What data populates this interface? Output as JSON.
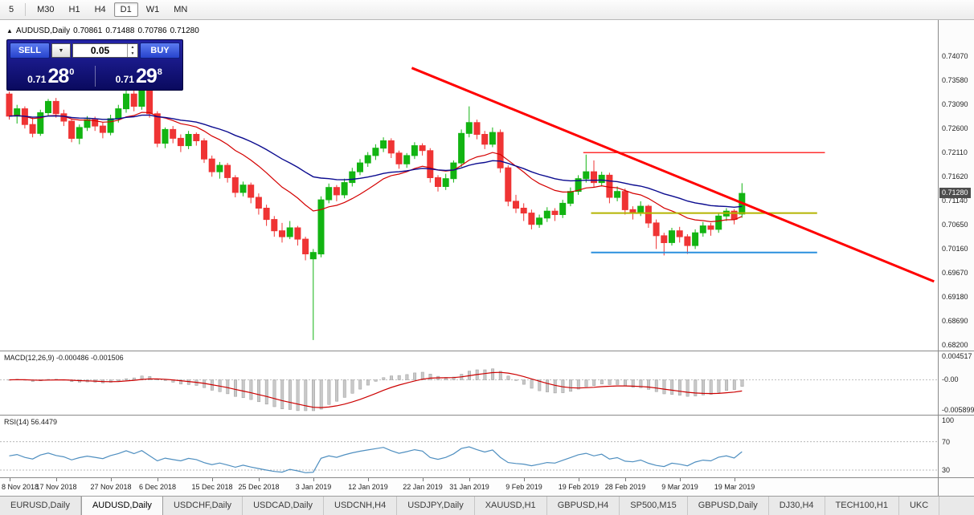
{
  "toolbar": {
    "timeframes": [
      "5",
      "M30",
      "H1",
      "H4",
      "D1",
      "W1",
      "MN"
    ],
    "active": "D1"
  },
  "chart": {
    "title_symbol": "AUDUSD,Daily",
    "ohlc": {
      "open": "0.70861",
      "high": "0.71488",
      "low": "0.70786",
      "close": "0.71280"
    }
  },
  "trade_panel": {
    "sell_label": "SELL",
    "buy_label": "BUY",
    "lot_size": "0.05",
    "sell_price_small": "0.71",
    "sell_price_big": "28",
    "sell_price_sup": "0",
    "buy_price_small": "0.71",
    "buy_price_big": "29",
    "buy_price_sup": "8"
  },
  "price_axis": {
    "labels": [
      "0.74070",
      "0.73580",
      "0.73090",
      "0.72600",
      "0.72110",
      "0.71620",
      "0.71140",
      "0.70650",
      "0.70160",
      "0.69670",
      "0.69180",
      "0.68690",
      "0.68200"
    ],
    "current": "0.71280",
    "current_price": 0.7128
  },
  "macd_panel": {
    "label": "MACD(12,26,9) -0.000486 -0.001506",
    "axis": [
      "0.004517",
      "-0.00",
      "-0.005899"
    ],
    "max": 0.004517,
    "min": -0.005899
  },
  "rsi_panel": {
    "label": "RSI(14) 56.4479",
    "axis": [
      "100",
      "70",
      "30"
    ],
    "levels": [
      70,
      30
    ]
  },
  "date_axis": {
    "ticks": [
      {
        "i": 0,
        "label": "8 Nov 2018"
      },
      {
        "i": 6,
        "label": "17 Nov 2018"
      },
      {
        "i": 13,
        "label": "27 Nov 2018"
      },
      {
        "i": 19,
        "label": "6 Dec 2018"
      },
      {
        "i": 26,
        "label": "15 Dec 2018"
      },
      {
        "i": 32,
        "label": "25 Dec 2018"
      },
      {
        "i": 39,
        "label": "3 Jan 2019"
      },
      {
        "i": 46,
        "label": "12 Jan 2019"
      },
      {
        "i": 53,
        "label": "22 Jan 2019"
      },
      {
        "i": 59,
        "label": "31 Jan 2019"
      },
      {
        "i": 66,
        "label": "9 Feb 2019"
      },
      {
        "i": 73,
        "label": "19 Feb 2019"
      },
      {
        "i": 79,
        "label": "28 Feb 2019"
      },
      {
        "i": 86,
        "label": "9 Mar 2019"
      },
      {
        "i": 93,
        "label": "19 Mar 2019"
      }
    ]
  },
  "tabs": [
    "EURUSD,Daily",
    "AUDUSD,Daily",
    "USDCHF,Daily",
    "USDCAD,Daily",
    "USDCNH,H4",
    "USDJPY,Daily",
    "XAUUSD,H1",
    "GBPUSD,H4",
    "SP500,M15",
    "GBPUSD,Daily",
    "DJ30,H4",
    "TECH100,H1",
    "UKC"
  ],
  "active_tab": "AUDUSD,Daily",
  "chart_data": {
    "type": "candlestick",
    "symbol": "AUDUSD",
    "timeframe": "Daily",
    "title": "AUDUSD,Daily",
    "price_range": {
      "top": 0.7407,
      "bottom": 0.682
    },
    "candles": [
      [
        0.733,
        0.7335,
        0.7278,
        0.7285
      ],
      [
        0.7285,
        0.7308,
        0.727,
        0.73
      ],
      [
        0.73,
        0.7305,
        0.726,
        0.7268
      ],
      [
        0.7268,
        0.7282,
        0.7242,
        0.725
      ],
      [
        0.725,
        0.7298,
        0.7245,
        0.7292
      ],
      [
        0.7292,
        0.732,
        0.7285,
        0.7315
      ],
      [
        0.7315,
        0.7322,
        0.7282,
        0.729
      ],
      [
        0.729,
        0.7298,
        0.7265,
        0.7275
      ],
      [
        0.7275,
        0.728,
        0.7232,
        0.724
      ],
      [
        0.724,
        0.7268,
        0.7228,
        0.7262
      ],
      [
        0.7262,
        0.7285,
        0.7255,
        0.7278
      ],
      [
        0.7278,
        0.7284,
        0.7255,
        0.7265
      ],
      [
        0.7265,
        0.7272,
        0.724,
        0.7252
      ],
      [
        0.7252,
        0.7288,
        0.7246,
        0.728
      ],
      [
        0.728,
        0.7308,
        0.7272,
        0.73
      ],
      [
        0.73,
        0.7338,
        0.7292,
        0.733
      ],
      [
        0.733,
        0.734,
        0.7295,
        0.7305
      ],
      [
        0.7305,
        0.7344,
        0.7298,
        0.7338
      ],
      [
        0.7338,
        0.7342,
        0.7282,
        0.729
      ],
      [
        0.729,
        0.7295,
        0.7222,
        0.723
      ],
      [
        0.723,
        0.7262,
        0.722,
        0.7258
      ],
      [
        0.7258,
        0.7265,
        0.723,
        0.724
      ],
      [
        0.724,
        0.7248,
        0.7212,
        0.7225
      ],
      [
        0.7225,
        0.7255,
        0.7218,
        0.7248
      ],
      [
        0.7248,
        0.7252,
        0.7225,
        0.7235
      ],
      [
        0.7235,
        0.724,
        0.719,
        0.7198
      ],
      [
        0.7198,
        0.7205,
        0.7162,
        0.7172
      ],
      [
        0.7172,
        0.7192,
        0.7158,
        0.7185
      ],
      [
        0.7185,
        0.719,
        0.715,
        0.716
      ],
      [
        0.716,
        0.7165,
        0.712,
        0.713
      ],
      [
        0.713,
        0.7152,
        0.7122,
        0.7145
      ],
      [
        0.7145,
        0.715,
        0.7108,
        0.712
      ],
      [
        0.712,
        0.7128,
        0.7085,
        0.7098
      ],
      [
        0.7098,
        0.7105,
        0.7062,
        0.7075
      ],
      [
        0.7075,
        0.7082,
        0.704,
        0.7052
      ],
      [
        0.7052,
        0.7068,
        0.7028,
        0.704
      ],
      [
        0.704,
        0.7072,
        0.7035,
        0.7058
      ],
      [
        0.7058,
        0.7062,
        0.7022,
        0.7035
      ],
      [
        0.7035,
        0.704,
        0.6992,
        0.7005
      ],
      [
        0.6995,
        0.7015,
        0.683,
        0.7008
      ],
      [
        0.7005,
        0.7122,
        0.6998,
        0.7115
      ],
      [
        0.7115,
        0.7148,
        0.7108,
        0.714
      ],
      [
        0.714,
        0.7145,
        0.7112,
        0.7125
      ],
      [
        0.7125,
        0.7158,
        0.7118,
        0.715
      ],
      [
        0.715,
        0.718,
        0.7142,
        0.7172
      ],
      [
        0.7172,
        0.7198,
        0.7165,
        0.719
      ],
      [
        0.719,
        0.7212,
        0.7182,
        0.7205
      ],
      [
        0.7205,
        0.7228,
        0.7196,
        0.722
      ],
      [
        0.722,
        0.7242,
        0.7212,
        0.7235
      ],
      [
        0.7235,
        0.724,
        0.72,
        0.721
      ],
      [
        0.721,
        0.7215,
        0.7178,
        0.7188
      ],
      [
        0.7188,
        0.721,
        0.718,
        0.7205
      ],
      [
        0.7205,
        0.7232,
        0.7198,
        0.7225
      ],
      [
        0.7225,
        0.723,
        0.7205,
        0.7215
      ],
      [
        0.7215,
        0.722,
        0.715,
        0.716
      ],
      [
        0.716,
        0.7165,
        0.7132,
        0.7142
      ],
      [
        0.7142,
        0.7168,
        0.7135,
        0.7158
      ],
      [
        0.7158,
        0.7195,
        0.715,
        0.719
      ],
      [
        0.719,
        0.7258,
        0.7182,
        0.725
      ],
      [
        0.725,
        0.7305,
        0.7242,
        0.7272
      ],
      [
        0.7272,
        0.7278,
        0.7238,
        0.7248
      ],
      [
        0.7248,
        0.7255,
        0.7218,
        0.7228
      ],
      [
        0.7228,
        0.7262,
        0.7222,
        0.7252
      ],
      [
        0.7252,
        0.7258,
        0.717,
        0.718
      ],
      [
        0.718,
        0.7185,
        0.7102,
        0.7112
      ],
      [
        0.7112,
        0.7125,
        0.7088,
        0.7098
      ],
      [
        0.7098,
        0.7108,
        0.7072,
        0.7088
      ],
      [
        0.7088,
        0.7095,
        0.7055,
        0.7065
      ],
      [
        0.7065,
        0.7085,
        0.7058,
        0.7078
      ],
      [
        0.7078,
        0.71,
        0.707,
        0.7092
      ],
      [
        0.7092,
        0.7098,
        0.7072,
        0.7085
      ],
      [
        0.7085,
        0.7115,
        0.7078,
        0.7108
      ],
      [
        0.7108,
        0.714,
        0.7102,
        0.7132
      ],
      [
        0.7132,
        0.7165,
        0.7125,
        0.7158
      ],
      [
        0.7158,
        0.7207,
        0.715,
        0.7172
      ],
      [
        0.7172,
        0.7195,
        0.714,
        0.715
      ],
      [
        0.715,
        0.7172,
        0.7142,
        0.7165
      ],
      [
        0.7165,
        0.717,
        0.7108,
        0.712
      ],
      [
        0.712,
        0.7142,
        0.7112,
        0.7132
      ],
      [
        0.7132,
        0.7138,
        0.7085,
        0.7095
      ],
      [
        0.7095,
        0.7102,
        0.7075,
        0.7088
      ],
      [
        0.7088,
        0.7112,
        0.7082,
        0.7102
      ],
      [
        0.7102,
        0.7105,
        0.7058,
        0.7068
      ],
      [
        0.7068,
        0.7075,
        0.7015,
        0.7042
      ],
      [
        0.7042,
        0.7048,
        0.7002,
        0.7028
      ],
      [
        0.7028,
        0.7058,
        0.7022,
        0.7052
      ],
      [
        0.7052,
        0.706,
        0.7028,
        0.704
      ],
      [
        0.704,
        0.7045,
        0.7005,
        0.7022
      ],
      [
        0.7022,
        0.7055,
        0.7015,
        0.7048
      ],
      [
        0.7048,
        0.707,
        0.704,
        0.7062
      ],
      [
        0.7062,
        0.7068,
        0.7042,
        0.7055
      ],
      [
        0.7055,
        0.7088,
        0.7048,
        0.7082
      ],
      [
        0.7082,
        0.7098,
        0.7072,
        0.7092
      ],
      [
        0.7092,
        0.7096,
        0.7065,
        0.7075
      ],
      [
        0.70861,
        0.71488,
        0.70786,
        0.7128
      ]
    ],
    "overlays": {
      "ma_fast": {
        "type": "ema",
        "period": 15,
        "color": "#d40000"
      },
      "ma_slow": {
        "type": "ema",
        "period": 34,
        "color": "#0b0b8f"
      },
      "trendline": {
        "x1_index": 52,
        "price1": 0.7383,
        "x2_index": 119,
        "price2": 0.6949,
        "color": "#ff0000",
        "width": 3
      },
      "hlines": [
        {
          "price": 0.7211,
          "x1_index": 74,
          "x2_index": 105,
          "color": "#ff3030",
          "width": 1.5
        },
        {
          "price": 0.7088,
          "x1_index": 75,
          "x2_index": 104,
          "color": "#b4b400",
          "width": 2
        },
        {
          "price": 0.7008,
          "x1_index": 75,
          "x2_index": 104,
          "color": "#2a8fdd",
          "width": 2
        }
      ]
    },
    "colors": {
      "up": "#12b412",
      "down": "#ef3434",
      "bg": "#ffffff"
    },
    "indicators": {
      "macd": {
        "fast": 12,
        "slow": 26,
        "signal": 9,
        "main_value": -0.000486,
        "signal_value": -0.001506,
        "histogram_color": "#c9c9c9",
        "signal_color": "#cc0000"
      },
      "rsi": {
        "period": 14,
        "value": 56.4479,
        "color": "#4f8fc0",
        "levels": [
          70,
          30
        ]
      }
    }
  }
}
